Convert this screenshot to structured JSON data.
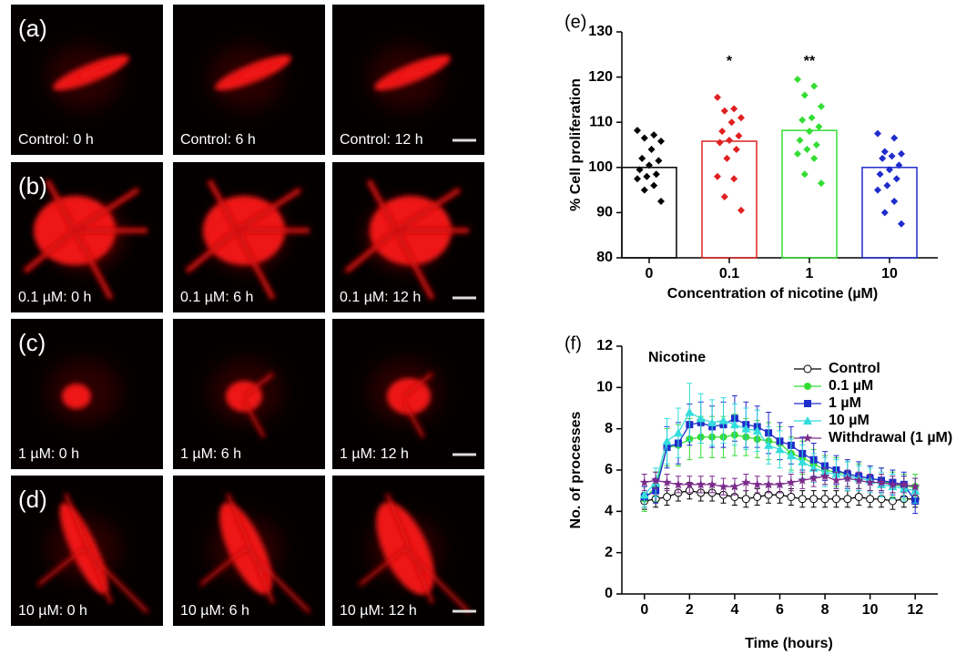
{
  "images": {
    "rows": [
      {
        "label": "(a)",
        "captions": [
          "Control: 0 h",
          "Control: 6 h",
          "Control: 12 h"
        ]
      },
      {
        "label": "(b)",
        "captions": [
          "0.1 µM: 0 h",
          "0.1 µM: 6 h",
          "0.1 µM: 12 h"
        ]
      },
      {
        "label": "(c)",
        "captions": [
          "1 µM: 0 h",
          "1 µM: 6 h",
          "1 µM: 12 h"
        ]
      },
      {
        "label": "(d)",
        "captions": [
          "10 µM: 0 h",
          "10 µM: 6 h",
          "10 µM: 12 h"
        ]
      }
    ]
  },
  "chart_data": [
    {
      "type": "bar",
      "panel_label": "(e)",
      "x_label": "Concentration of nicotine (µM)",
      "y_label": "% Cell proliferation",
      "categories": [
        "0",
        "0.1",
        "1",
        "10"
      ],
      "values": [
        100,
        105.8,
        108.2,
        100
      ],
      "colors": [
        "#000000",
        "#e02020",
        "#33dd33",
        "#1f2ccc"
      ],
      "points": [
        [
          108.2,
          107.2,
          106.5,
          105.8,
          104.0,
          102.0,
          101.5,
          100.5,
          99.5,
          98.5,
          98.0,
          97.5,
          96.0,
          95.0,
          92.5
        ],
        [
          115.5,
          113,
          112.5,
          111,
          110,
          108,
          107,
          106,
          105.5,
          104,
          102,
          98,
          97.5,
          93.5,
          90.5
        ],
        [
          119.5,
          118,
          116,
          113.5,
          111,
          110.5,
          109,
          108,
          106,
          105,
          104,
          103,
          102,
          98.5,
          96.5
        ],
        [
          107.5,
          106.5,
          103.5,
          103,
          102.5,
          102,
          100.5,
          99.5,
          98.5,
          97.5,
          96,
          95,
          92.5,
          90,
          87.5
        ]
      ],
      "annotations": [
        {
          "text": "*",
          "x": "0.1"
        },
        {
          "text": "**",
          "x": "1"
        }
      ],
      "ylim": [
        80,
        130
      ],
      "yticks": [
        80,
        90,
        100,
        110,
        120,
        130
      ]
    },
    {
      "type": "line",
      "panel_label": "(f)",
      "annotation": "Nicotine",
      "x_label": "Time (hours)",
      "y_label": "No. of processes",
      "x": [
        0,
        0.5,
        1,
        1.5,
        2,
        2.5,
        3,
        3.5,
        4,
        4.5,
        5,
        5.5,
        6,
        6.5,
        7,
        7.5,
        8,
        8.5,
        9,
        9.5,
        10,
        10.5,
        11,
        11.5,
        12
      ],
      "series": [
        {
          "name": "Control",
          "color": "#000000",
          "marker": "circle-open",
          "values": [
            4.5,
            4.6,
            4.7,
            4.9,
            5.0,
            4.9,
            4.9,
            4.8,
            4.7,
            4.6,
            4.7,
            4.8,
            4.8,
            4.7,
            4.6,
            4.6,
            4.6,
            4.6,
            4.6,
            4.7,
            4.6,
            4.6,
            4.5,
            4.6,
            4.6
          ],
          "errors": [
            0.4,
            0.4,
            0.4,
            0.4,
            0.4,
            0.4,
            0.4,
            0.4,
            0.4,
            0.4,
            0.4,
            0.4,
            0.4,
            0.4,
            0.4,
            0.4,
            0.4,
            0.4,
            0.4,
            0.4,
            0.4,
            0.4,
            0.4,
            0.4,
            0.4
          ]
        },
        {
          "name": "0.1 µM",
          "color": "#33dd33",
          "marker": "circle",
          "values": [
            4.6,
            5.2,
            7.1,
            7.2,
            7.5,
            7.6,
            7.6,
            7.6,
            7.7,
            7.6,
            7.5,
            7.4,
            7.3,
            6.8,
            6.6,
            6.3,
            6.0,
            5.9,
            5.8,
            5.7,
            5.6,
            5.5,
            5.3,
            5.2,
            5.2
          ],
          "errors": [
            0.6,
            0.7,
            0.9,
            1.0,
            1.0,
            1.0,
            1.0,
            1.0,
            1.0,
            0.9,
            0.9,
            0.9,
            0.8,
            0.8,
            0.8,
            0.7,
            0.7,
            0.7,
            0.6,
            0.6,
            0.6,
            0.6,
            0.6,
            0.6,
            0.6
          ]
        },
        {
          "name": "1 µM",
          "color": "#1f2ccc",
          "marker": "square",
          "values": [
            4.7,
            5.0,
            7.1,
            7.3,
            8.2,
            8.3,
            8.1,
            8.2,
            8.5,
            8.2,
            8.1,
            7.8,
            7.4,
            7.2,
            6.8,
            6.5,
            6.2,
            6.0,
            5.8,
            5.7,
            5.6,
            5.5,
            5.4,
            5.3,
            4.5
          ],
          "errors": [
            0.5,
            0.6,
            1.0,
            1.0,
            1.0,
            1.0,
            1.0,
            1.1,
            1.1,
            1.1,
            1.0,
            1.0,
            0.9,
            0.9,
            0.8,
            0.8,
            0.7,
            0.7,
            0.7,
            0.7,
            0.6,
            0.6,
            0.6,
            0.6,
            0.6
          ]
        },
        {
          "name": "10 µM",
          "color": "#33dddd",
          "marker": "triangle",
          "values": [
            4.8,
            5.4,
            7.4,
            7.8,
            8.8,
            8.5,
            8.3,
            8.4,
            8.2,
            8.0,
            7.9,
            7.2,
            7.0,
            6.7,
            6.4,
            6.1,
            5.9,
            5.8,
            5.7,
            5.6,
            5.5,
            5.3,
            5.2,
            5.1,
            5.0
          ],
          "errors": [
            0.6,
            0.7,
            1.1,
            1.2,
            1.4,
            1.2,
            1.1,
            1.1,
            1.0,
            1.0,
            1.0,
            0.9,
            0.9,
            0.8,
            0.8,
            0.7,
            0.7,
            0.7,
            0.7,
            0.6,
            0.6,
            0.6,
            0.6,
            0.6,
            0.6
          ]
        },
        {
          "name": "Withdrawal (1 µM)",
          "color": "#7a2a8a",
          "marker": "star",
          "values": [
            5.4,
            5.5,
            5.4,
            5.3,
            5.3,
            5.3,
            5.3,
            5.2,
            5.2,
            5.4,
            5.3,
            5.3,
            5.3,
            5.4,
            5.5,
            5.6,
            5.7,
            5.5,
            5.6,
            5.5,
            5.4,
            5.4,
            5.3,
            5.3,
            5.2
          ],
          "errors": [
            0.4,
            0.4,
            0.4,
            0.4,
            0.4,
            0.4,
            0.4,
            0.4,
            0.4,
            0.4,
            0.4,
            0.4,
            0.4,
            0.4,
            0.4,
            0.4,
            0.4,
            0.4,
            0.4,
            0.4,
            0.4,
            0.4,
            0.4,
            0.4,
            0.4
          ]
        }
      ],
      "xlim": [
        -1,
        13
      ],
      "xticks": [
        0,
        2,
        4,
        6,
        8,
        10,
        12
      ],
      "ylim": [
        0,
        12
      ],
      "yticks": [
        0,
        2,
        4,
        6,
        8,
        10,
        12
      ]
    }
  ]
}
